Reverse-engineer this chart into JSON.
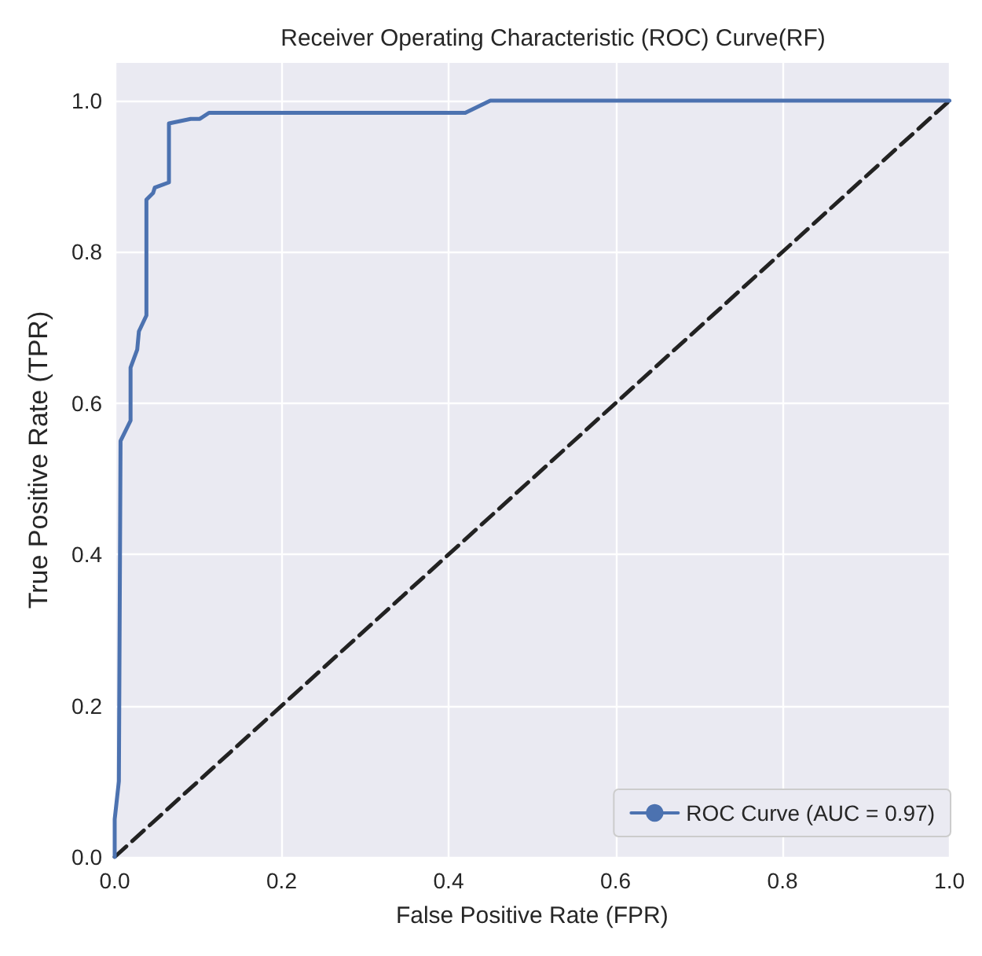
{
  "chart_data": {
    "type": "line",
    "title": "Receiver Operating Characteristic (ROC) Curve(RF)",
    "xlabel": "False Positive Rate (FPR)",
    "ylabel": "True Positive Rate (TPR)",
    "xlim": [
      0,
      1
    ],
    "ylim": [
      0,
      1.05
    ],
    "xticks": [
      {
        "value": 0,
        "label": "0.0"
      },
      {
        "value": 0.2,
        "label": "0.2"
      },
      {
        "value": 0.4,
        "label": "0.4"
      },
      {
        "value": 0.6,
        "label": "0.6"
      },
      {
        "value": 0.8,
        "label": "0.8"
      },
      {
        "value": 1,
        "label": "1.0"
      }
    ],
    "yticks": [
      {
        "value": 0,
        "label": "0.0"
      },
      {
        "value": 0.2,
        "label": "0.2"
      },
      {
        "value": 0.4,
        "label": "0.4"
      },
      {
        "value": 0.6,
        "label": "0.6"
      },
      {
        "value": 0.8,
        "label": "0.8"
      },
      {
        "value": 1,
        "label": "1.0"
      }
    ],
    "grid": true,
    "legend": "bottom right",
    "marker": "none",
    "series": [
      {
        "name": "ROC Curve (AUC = 0.97)",
        "color": "#4c72b0",
        "line_style": "solid",
        "x": [
          0,
          0,
          0.005,
          0.007,
          0.019,
          0.019,
          0.027,
          0.029,
          0.038,
          0.038,
          0.046,
          0.048,
          0.065,
          0.065,
          0.091,
          0.102,
          0.113,
          0.42,
          0.45,
          1
        ],
        "values": [
          0,
          0.05,
          0.1,
          0.55,
          0.577,
          0.647,
          0.671,
          0.695,
          0.716,
          0.869,
          0.878,
          0.885,
          0.892,
          0.97,
          0.976,
          0.976,
          0.984,
          0.984,
          1,
          1
        ]
      },
      {
        "color": "#222222",
        "line_style": "dashed",
        "x": [
          0,
          1
        ],
        "values": [
          0,
          1
        ]
      }
    ]
  }
}
